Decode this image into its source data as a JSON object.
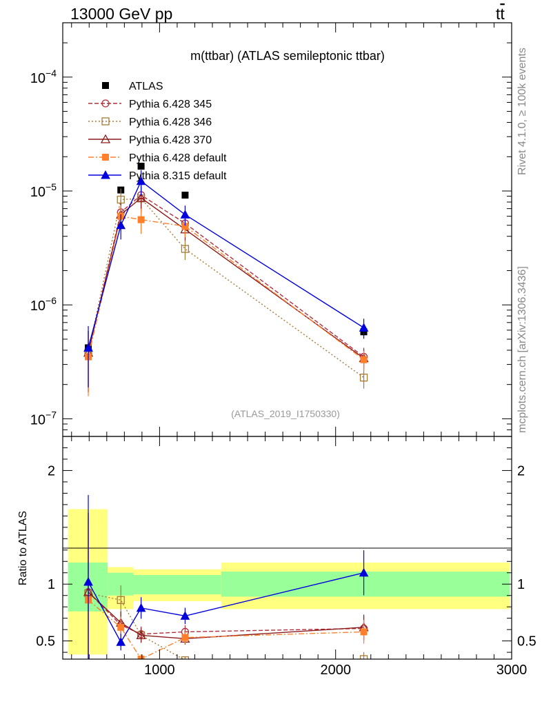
{
  "header": {
    "left": "13000 GeV pp",
    "right_base": "t",
    "right_bar": "t"
  },
  "side_labels": {
    "rivet": "Rivet 4.1.0, ≥ 100k events",
    "mcplots": "mcplots.cern.ch [arXiv:1306.3436]"
  },
  "colors": {
    "atlas": "#000000",
    "p345": "#b22d3a",
    "p346": "#a57a37",
    "p370": "#8b1a1a",
    "p6def": "#ff7f2a",
    "p8def": "#0000dd",
    "band_outer": "#ffff80",
    "band_inner": "#99ff99"
  },
  "chart_data": [
    {
      "type": "line",
      "panel": "main",
      "title": "m(ttbar) (ATLAS semileptonic ttbar)",
      "analysis_label": "(ATLAS_2019_I1750330)",
      "yscale": "log",
      "xlim": [
        450,
        3000
      ],
      "ylim": [
        7e-08,
        0.0003
      ],
      "ytick_labels": [
        {
          "mant": "10",
          "exp": "−7"
        },
        {
          "mant": "10",
          "exp": "−6"
        },
        {
          "mant": "10",
          "exp": "−5"
        },
        {
          "mant": "10",
          "exp": "−4"
        }
      ],
      "legend": [
        "ATLAS",
        "Pythia 6.428 345",
        "Pythia 6.428 346",
        "Pythia 6.428 370",
        "Pythia 6.428 default",
        "Pythia 8.315 default"
      ],
      "x": [
        595,
        780,
        895,
        1145,
        2160
      ],
      "series": [
        {
          "name": "ATLAS",
          "marker": "square-filled",
          "values": [
            4.2e-07,
            1.02e-05,
            1.65e-05,
            9.2e-06,
            5.8e-07
          ]
        },
        {
          "name": "Pythia 6.428 345",
          "marker": "circle-open",
          "values": [
            3.8e-07,
            6.5e-06,
            9.2e-06,
            5.2e-06,
            3.5e-07
          ]
        },
        {
          "name": "Pythia 6.428 346",
          "marker": "square-open",
          "values": [
            3.8e-07,
            8.4e-06,
            8.6e-06,
            3.1e-06,
            2.3e-07
          ]
        },
        {
          "name": "Pythia 6.428 370",
          "marker": "triangle-open",
          "values": [
            3.8e-07,
            6.2e-06,
            8.7e-06,
            4.6e-06,
            3.4e-07
          ]
        },
        {
          "name": "Pythia 6.428 default",
          "marker": "square-filled",
          "values": [
            3.5e-07,
            6e-06,
            5.6e-06,
            4.9e-06,
            3.3e-07
          ]
        },
        {
          "name": "Pythia 8.315 default",
          "marker": "triangle-filled",
          "values": [
            4.2e-07,
            5e-06,
            1.22e-05,
            6.2e-06,
            6.3e-07
          ]
        }
      ]
    },
    {
      "type": "line",
      "panel": "ratio",
      "ylabel": "Ratio to ATLAS",
      "xlabel": "",
      "xlim": [
        450,
        3000
      ],
      "ylim": [
        0.34,
        2.3
      ],
      "yticks": [
        0.5,
        1,
        2
      ],
      "ytick_labels": [
        "0.5",
        "1",
        "2"
      ],
      "xticks": [
        1000,
        2000,
        3000
      ],
      "xtick_labels": [
        "1000",
        "2000",
        "3000"
      ],
      "x": [
        595,
        780,
        895,
        1145,
        2160
      ],
      "bands": [
        {
          "x0": 480,
          "x1": 705,
          "inner": [
            0.76,
            1.19
          ],
          "outer": [
            0.38,
            1.66
          ]
        },
        {
          "x0": 705,
          "x1": 850,
          "inner": [
            0.9,
            1.1
          ],
          "outer": [
            0.78,
            1.15
          ]
        },
        {
          "x0": 850,
          "x1": 1350,
          "inner": [
            0.91,
            1.08
          ],
          "outer": [
            0.85,
            1.13
          ]
        },
        {
          "x0": 1350,
          "x1": 2990,
          "inner": [
            0.89,
            1.11
          ],
          "outer": [
            0.78,
            1.19
          ]
        }
      ],
      "series": [
        {
          "name": "Pythia 6.428 345",
          "values": [
            0.93,
            0.64,
            0.56,
            0.58,
            0.61
          ]
        },
        {
          "name": "Pythia 6.428 346",
          "values": [
            0.92,
            0.86,
            0.55,
            0.33,
            0.34
          ]
        },
        {
          "name": "Pythia 6.428 370",
          "values": [
            0.93,
            0.66,
            0.55,
            0.52,
            0.62
          ]
        },
        {
          "name": "Pythia 6.428 default",
          "values": [
            0.86,
            0.62,
            0.34,
            0.53,
            0.58
          ]
        },
        {
          "name": "Pythia 8.315 default",
          "values": [
            1.02,
            0.49,
            0.79,
            0.72,
            1.1
          ]
        }
      ]
    }
  ]
}
